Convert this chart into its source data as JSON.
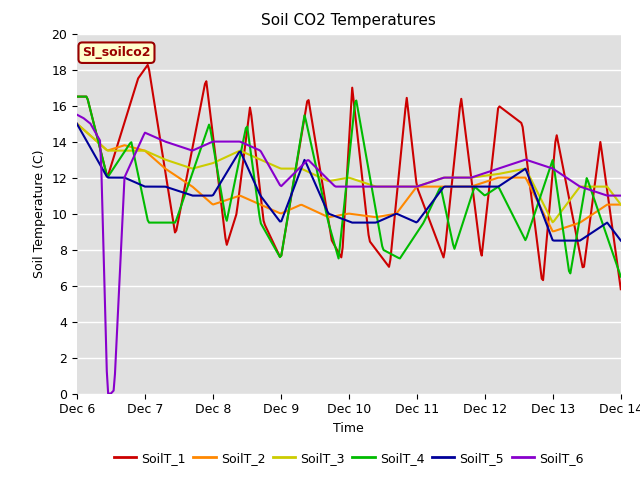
{
  "title": "Soil CO2 Temperatures",
  "xlabel": "Time",
  "ylabel": "Soil Temperature (C)",
  "ylim": [
    0,
    20
  ],
  "xlim": [
    6.0,
    14.0
  ],
  "xtick_positions": [
    6,
    7,
    8,
    9,
    10,
    11,
    12,
    13,
    14
  ],
  "xtick_labels": [
    "Dec 6",
    "Dec 7",
    "Dec 8",
    "Dec 9",
    "Dec 10",
    "Dec 11",
    "Dec 12",
    "Dec 13",
    "Dec 14"
  ],
  "ytick_positions": [
    0,
    2,
    4,
    6,
    8,
    10,
    12,
    14,
    16,
    18,
    20
  ],
  "bg_color": "#e0e0e0",
  "grid_color": "#ffffff",
  "line_colors": [
    "#cc0000",
    "#ff8800",
    "#cccc00",
    "#00bb00",
    "#000099",
    "#8800cc"
  ],
  "line_labels": [
    "SoilT_1",
    "SoilT_2",
    "SoilT_3",
    "SoilT_4",
    "SoilT_5",
    "SoilT_6"
  ],
  "vline_color": "#8800cc",
  "annotation_text": "SI_soilco2",
  "annotation_bg": "#ffffcc",
  "annotation_border": "#990000"
}
